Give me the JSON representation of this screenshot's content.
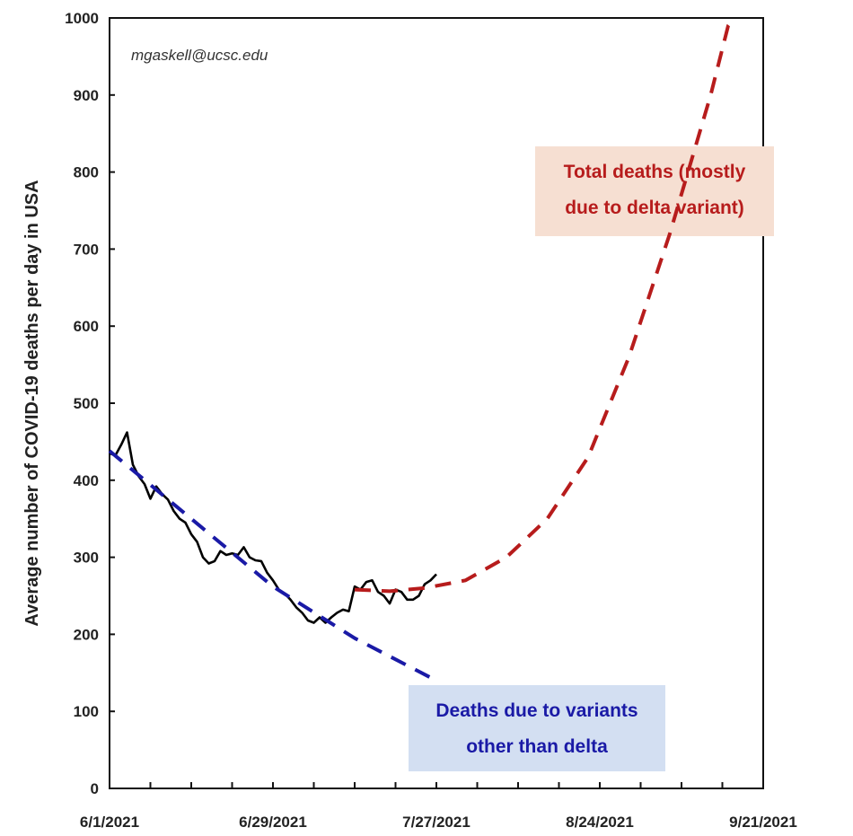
{
  "chart_data": {
    "type": "line",
    "ylabel": "Average number of COVID-19 deaths per day in USA",
    "xlabel": "",
    "ylim": [
      0,
      1000
    ],
    "yticks": [
      "0",
      "100",
      "200",
      "300",
      "400",
      "500",
      "600",
      "700",
      "800",
      "900",
      "1000"
    ],
    "xlim": [
      "6/1/2021",
      "9/21/2021"
    ],
    "xticks": [
      "6/1/2021",
      "6/29/2021",
      "7/27/2021",
      "8/24/2021",
      "9/21/2021"
    ],
    "watermark": "mgaskell@ucsc.edu",
    "series": [
      {
        "name": "",
        "style": "solid",
        "color": "#000000",
        "points": [
          [
            "6/1/2021",
            435
          ],
          [
            "6/2/2021",
            432
          ],
          [
            "6/3/2021",
            446
          ],
          [
            "6/4/2021",
            462
          ],
          [
            "6/5/2021",
            420
          ],
          [
            "6/6/2021",
            405
          ],
          [
            "6/7/2021",
            395
          ],
          [
            "6/8/2021",
            376
          ],
          [
            "6/9/2021",
            392
          ],
          [
            "6/10/2021",
            382
          ],
          [
            "6/11/2021",
            375
          ],
          [
            "6/12/2021",
            360
          ],
          [
            "6/13/2021",
            350
          ],
          [
            "6/14/2021",
            345
          ],
          [
            "6/15/2021",
            330
          ],
          [
            "6/16/2021",
            320
          ],
          [
            "6/17/2021",
            300
          ],
          [
            "6/18/2021",
            292
          ],
          [
            "6/19/2021",
            295
          ],
          [
            "6/20/2021",
            308
          ],
          [
            "6/21/2021",
            303
          ],
          [
            "6/22/2021",
            305
          ],
          [
            "6/23/2021",
            303
          ],
          [
            "6/24/2021",
            313
          ],
          [
            "6/25/2021",
            300
          ],
          [
            "6/26/2021",
            296
          ],
          [
            "6/27/2021",
            295
          ],
          [
            "6/28/2021",
            280
          ],
          [
            "6/29/2021",
            270
          ],
          [
            "6/30/2021",
            258
          ],
          [
            "7/1/2021",
            253
          ],
          [
            "7/2/2021",
            245
          ],
          [
            "7/3/2021",
            235
          ],
          [
            "7/4/2021",
            228
          ],
          [
            "7/5/2021",
            218
          ],
          [
            "7/6/2021",
            215
          ],
          [
            "7/7/2021",
            222
          ],
          [
            "7/8/2021",
            215
          ],
          [
            "7/9/2021",
            222
          ],
          [
            "7/10/2021",
            228
          ],
          [
            "7/11/2021",
            232
          ],
          [
            "7/12/2021",
            230
          ],
          [
            "7/13/2021",
            262
          ],
          [
            "7/14/2021",
            258
          ],
          [
            "7/15/2021",
            268
          ],
          [
            "7/16/2021",
            270
          ],
          [
            "7/17/2021",
            255
          ],
          [
            "7/18/2021",
            250
          ],
          [
            "7/19/2021",
            240
          ],
          [
            "7/20/2021",
            258
          ],
          [
            "7/21/2021",
            255
          ],
          [
            "7/22/2021",
            245
          ],
          [
            "7/23/2021",
            245
          ],
          [
            "7/24/2021",
            250
          ],
          [
            "7/25/2021",
            265
          ],
          [
            "7/26/2021",
            270
          ],
          [
            "7/27/2021",
            278
          ]
        ]
      },
      {
        "name": "Total deaths (mostly due to delta variant)",
        "style": "dashed",
        "color": "#b71c1c",
        "points": [
          [
            "7/13/2021",
            258
          ],
          [
            "7/19/2021",
            256
          ],
          [
            "7/25/2021",
            260
          ],
          [
            "8/1/2021",
            270
          ],
          [
            "8/8/2021",
            300
          ],
          [
            "8/15/2021",
            350
          ],
          [
            "8/22/2021",
            430
          ],
          [
            "8/29/2021",
            560
          ],
          [
            "9/5/2021",
            720
          ],
          [
            "9/12/2021",
            900
          ],
          [
            "9/15/2021",
            990
          ],
          [
            "9/16/2021",
            1000
          ]
        ]
      },
      {
        "name": "Deaths due to variants other than delta",
        "style": "dashed",
        "color": "#1a1aa6",
        "points": [
          [
            "6/1/2021",
            438
          ],
          [
            "6/15/2021",
            350
          ],
          [
            "6/29/2021",
            262
          ],
          [
            "7/13/2021",
            195
          ],
          [
            "7/27/2021",
            140
          ]
        ]
      }
    ],
    "annotations": [
      {
        "lines": [
          "Total deaths (mostly",
          "due to delta variant)"
        ],
        "text_color": "#b71c1c",
        "box_color": "#f6dfd2"
      },
      {
        "lines": [
          "Deaths due to variants",
          "other than delta"
        ],
        "text_color": "#1a1aa6",
        "box_color": "#d3dff2"
      }
    ]
  }
}
